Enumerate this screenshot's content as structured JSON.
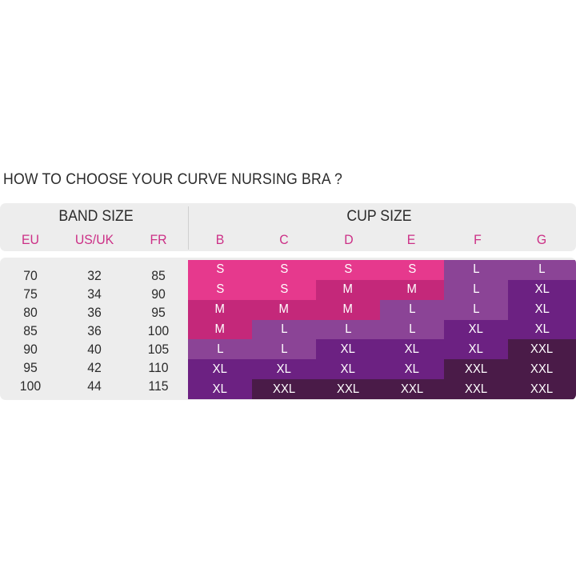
{
  "title": "HOW TO CHOOSE YOUR CURVE NURSING BRA ?",
  "band": {
    "title": "BAND SIZE",
    "columns": [
      "EU",
      "US/UK",
      "FR"
    ],
    "rows": [
      [
        "70",
        "32",
        "85"
      ],
      [
        "75",
        "34",
        "90"
      ],
      [
        "80",
        "36",
        "95"
      ],
      [
        "85",
        "36",
        "100"
      ],
      [
        "90",
        "40",
        "105"
      ],
      [
        "95",
        "42",
        "110"
      ],
      [
        "100",
        "44",
        "115"
      ]
    ]
  },
  "cup": {
    "title": "CUP SIZE",
    "columns": [
      "B",
      "C",
      "D",
      "E",
      "F",
      "G"
    ],
    "rows": [
      [
        "S",
        "S",
        "S",
        "S",
        "L",
        "L"
      ],
      [
        "S",
        "S",
        "M",
        "M",
        "L",
        "XL"
      ],
      [
        "M",
        "M",
        "M",
        "L",
        "L",
        "XL"
      ],
      [
        "M",
        "L",
        "L",
        "L",
        "XL",
        "XL"
      ],
      [
        "L",
        "L",
        "XL",
        "XL",
        "XL",
        "XXL"
      ],
      [
        "XL",
        "XL",
        "XL",
        "XL",
        "XXL",
        "XXL"
      ],
      [
        "XL",
        "XXL",
        "XXL",
        "XXL",
        "XXL",
        "XXL"
      ]
    ]
  },
  "colors": {
    "S": "#e6398d",
    "M": "#c4287a",
    "L": "#8b4496",
    "XL": "#6c2182",
    "XXL": "#4a1b48",
    "header_text": "#cc2f86"
  }
}
